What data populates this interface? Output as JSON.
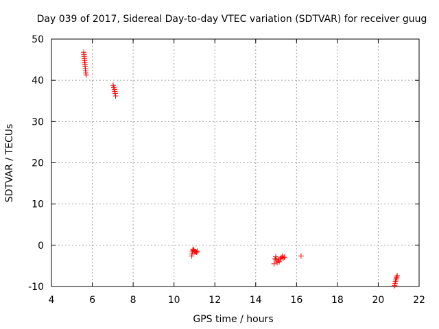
{
  "chart_data": {
    "type": "scatter",
    "title": "Day 039 of 2017, Sidereal Day-to-day VTEC variation (SDTVAR) for receiver guug",
    "xlabel": "GPS time / hours",
    "ylabel": "SDTVAR / TECUs",
    "xlim": [
      4,
      22
    ],
    "ylim": [
      -10,
      50
    ],
    "xticks": [
      "4",
      "6",
      "8",
      "10",
      "12",
      "14",
      "16",
      "18",
      "20",
      "22"
    ],
    "yticks": [
      "-10",
      "0",
      "10",
      "20",
      "30",
      "40",
      "50"
    ],
    "grid": true,
    "marker": "+",
    "marker_color": "#ff0000",
    "points": [
      [
        5.58,
        46.8
      ],
      [
        5.59,
        46.3
      ],
      [
        5.6,
        45.8
      ],
      [
        5.61,
        45.3
      ],
      [
        5.62,
        44.8
      ],
      [
        5.63,
        44.3
      ],
      [
        5.64,
        43.8
      ],
      [
        5.65,
        43.3
      ],
      [
        5.66,
        42.8
      ],
      [
        5.67,
        42.3
      ],
      [
        5.68,
        41.8
      ],
      [
        5.7,
        41.3
      ],
      [
        7.02,
        38.8
      ],
      [
        7.05,
        38.3
      ],
      [
        7.08,
        37.8
      ],
      [
        7.1,
        37.3
      ],
      [
        7.12,
        36.8
      ],
      [
        7.14,
        36.2
      ],
      [
        10.86,
        -2.6
      ],
      [
        10.88,
        -2.1
      ],
      [
        10.9,
        -1.6
      ],
      [
        10.92,
        -1.2
      ],
      [
        10.95,
        -1.0
      ],
      [
        10.98,
        -1.3
      ],
      [
        11.02,
        -1.6
      ],
      [
        11.06,
        -1.5
      ],
      [
        11.1,
        -1.7
      ],
      [
        11.14,
        -1.4
      ],
      [
        14.9,
        -4.5
      ],
      [
        14.95,
        -3.3
      ],
      [
        14.98,
        -2.8
      ],
      [
        15.0,
        -3.5
      ],
      [
        15.05,
        -4.2
      ],
      [
        15.1,
        -3.6
      ],
      [
        15.15,
        -4.0
      ],
      [
        15.2,
        -3.3
      ],
      [
        15.25,
        -3.0
      ],
      [
        15.3,
        -2.7
      ],
      [
        15.35,
        -3.1
      ],
      [
        15.4,
        -2.9
      ],
      [
        16.22,
        -2.6
      ],
      [
        20.8,
        -9.8
      ],
      [
        20.82,
        -9.3
      ],
      [
        20.84,
        -8.8
      ],
      [
        20.86,
        -8.4
      ],
      [
        20.88,
        -8.0
      ],
      [
        20.9,
        -7.7
      ],
      [
        20.93,
        -7.4
      ]
    ]
  }
}
